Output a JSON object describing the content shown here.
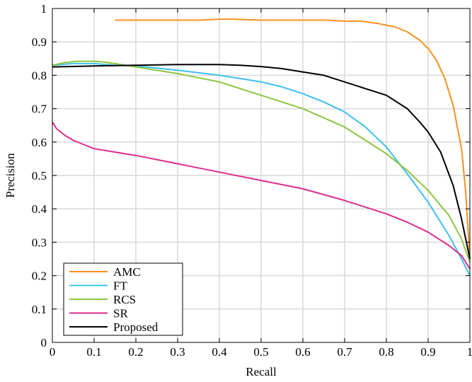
{
  "chart_data": {
    "type": "line",
    "title": "",
    "xlabel": "Recall",
    "ylabel": "Precision",
    "xlim": [
      0,
      1
    ],
    "ylim": [
      0,
      1
    ],
    "grid": true,
    "legend_position": "bottom-left",
    "x_ticks": [
      "0",
      "0.1",
      "0.2",
      "0.3",
      "0.4",
      "0.5",
      "0.6",
      "0.7",
      "0.8",
      "0.9",
      "1"
    ],
    "y_ticks": [
      "0",
      "0.1",
      "0.2",
      "0.3",
      "0.4",
      "0.5",
      "0.6",
      "0.7",
      "0.8",
      "0.9",
      "1"
    ],
    "series": [
      {
        "name": "AMC",
        "color": "#f7901e",
        "x": [
          0.15,
          0.2,
          0.3,
          0.35,
          0.4,
          0.43,
          0.5,
          0.6,
          0.66,
          0.7,
          0.74,
          0.78,
          0.82,
          0.85,
          0.88,
          0.9,
          0.92,
          0.94,
          0.96,
          0.98,
          0.99,
          1.0
        ],
        "y": [
          0.965,
          0.965,
          0.965,
          0.965,
          0.968,
          0.968,
          0.965,
          0.965,
          0.965,
          0.962,
          0.962,
          0.955,
          0.945,
          0.93,
          0.905,
          0.88,
          0.845,
          0.79,
          0.71,
          0.58,
          0.45,
          0.25
        ]
      },
      {
        "name": "FT",
        "color": "#3fc0ee",
        "x": [
          0.0,
          0.05,
          0.1,
          0.15,
          0.2,
          0.3,
          0.4,
          0.5,
          0.55,
          0.6,
          0.65,
          0.7,
          0.75,
          0.8,
          0.85,
          0.9,
          0.95,
          0.98,
          1.0
        ],
        "y": [
          0.83,
          0.835,
          0.835,
          0.83,
          0.828,
          0.815,
          0.8,
          0.78,
          0.765,
          0.745,
          0.72,
          0.69,
          0.645,
          0.585,
          0.505,
          0.42,
          0.32,
          0.25,
          0.2
        ]
      },
      {
        "name": "RCS",
        "color": "#8dc63f",
        "x": [
          0.0,
          0.03,
          0.06,
          0.1,
          0.12,
          0.15,
          0.2,
          0.3,
          0.4,
          0.5,
          0.6,
          0.7,
          0.75,
          0.8,
          0.85,
          0.9,
          0.95,
          0.98,
          1.0
        ],
        "y": [
          0.83,
          0.838,
          0.842,
          0.842,
          0.84,
          0.835,
          0.825,
          0.805,
          0.78,
          0.74,
          0.7,
          0.645,
          0.605,
          0.565,
          0.515,
          0.455,
          0.38,
          0.31,
          0.24
        ]
      },
      {
        "name": "SR",
        "color": "#dd2d8d",
        "x": [
          0.0,
          0.01,
          0.03,
          0.05,
          0.08,
          0.1,
          0.15,
          0.2,
          0.3,
          0.4,
          0.5,
          0.6,
          0.7,
          0.8,
          0.85,
          0.9,
          0.95,
          0.98,
          1.0
        ],
        "y": [
          0.66,
          0.64,
          0.62,
          0.605,
          0.59,
          0.58,
          0.57,
          0.56,
          0.535,
          0.51,
          0.485,
          0.46,
          0.425,
          0.385,
          0.36,
          0.33,
          0.29,
          0.26,
          0.22
        ]
      },
      {
        "name": "Proposed",
        "color": "#000000",
        "x": [
          0.0,
          0.1,
          0.2,
          0.3,
          0.4,
          0.45,
          0.5,
          0.55,
          0.6,
          0.65,
          0.7,
          0.75,
          0.8,
          0.85,
          0.88,
          0.9,
          0.93,
          0.96,
          0.98,
          1.0
        ],
        "y": [
          0.825,
          0.828,
          0.83,
          0.832,
          0.832,
          0.83,
          0.826,
          0.82,
          0.81,
          0.8,
          0.78,
          0.76,
          0.74,
          0.7,
          0.66,
          0.63,
          0.57,
          0.47,
          0.37,
          0.25
        ]
      }
    ]
  }
}
